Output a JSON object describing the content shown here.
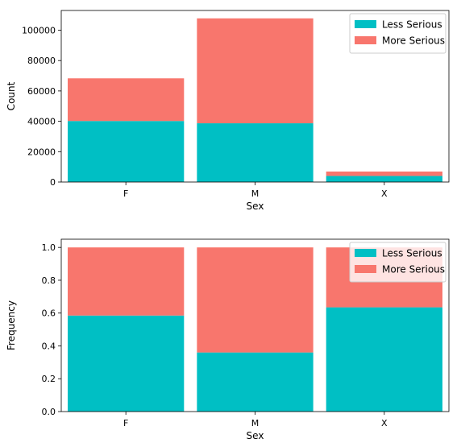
{
  "chart_data": [
    {
      "type": "bar",
      "stacked": true,
      "xlabel": "Sex",
      "ylabel": "Count",
      "categories": [
        "F",
        "M",
        "X"
      ],
      "ylim": [
        0,
        113000
      ],
      "yticks": [
        0,
        20000,
        40000,
        60000,
        80000,
        100000
      ],
      "legend": "top-right",
      "series": [
        {
          "name": "Less Serious",
          "color": "#00bfc4",
          "values": [
            40200,
            38700,
            4000
          ]
        },
        {
          "name": "More Serious",
          "color": "#f8766d",
          "values": [
            28100,
            69100,
            2900
          ]
        }
      ]
    },
    {
      "type": "bar",
      "stacked": true,
      "xlabel": "Sex",
      "ylabel": "Frequency",
      "categories": [
        "F",
        "M",
        "X"
      ],
      "ylim": [
        0,
        1.05
      ],
      "yticks": [
        0.0,
        0.2,
        0.4,
        0.6,
        0.8,
        1.0
      ],
      "legend": "top-right",
      "series": [
        {
          "name": "Less Serious",
          "color": "#00bfc4",
          "values": [
            0.585,
            0.36,
            0.635
          ]
        },
        {
          "name": "More Serious",
          "color": "#f8766d",
          "values": [
            0.415,
            0.64,
            0.365
          ]
        }
      ]
    }
  ]
}
